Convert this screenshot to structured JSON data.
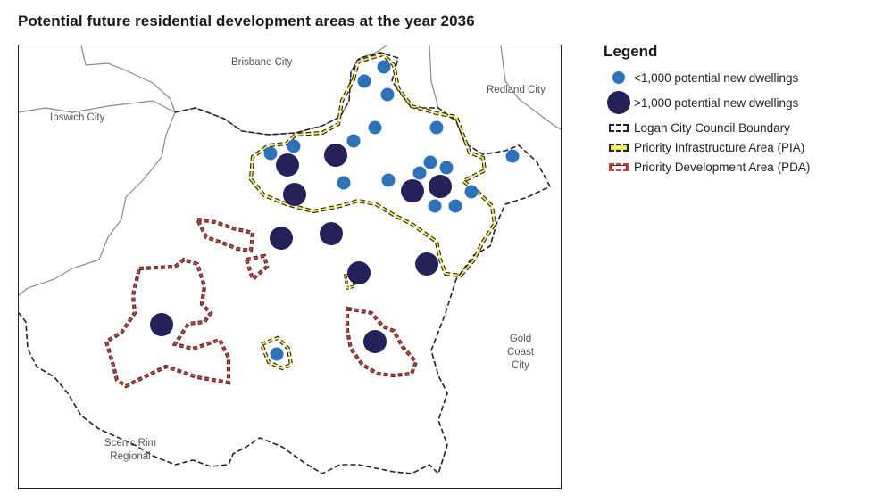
{
  "title": "Potential future residential development areas at the year 2036",
  "legend": {
    "title": "Legend",
    "items": [
      {
        "label": "<1,000 potential new dwellings",
        "symbol": "small-blue-dot",
        "color": "#2e72ba"
      },
      {
        "label": ">1,000 potential new dwellings",
        "symbol": "large-navy-dot",
        "color": "#25225a"
      },
      {
        "label": "Logan City Council Boundary",
        "symbol": "black-dashed-line",
        "color": "#222222"
      },
      {
        "label": "Priority Infrastructure Area (PIA)",
        "symbol": "yellow-dashed-line",
        "color": "#f2e63a"
      },
      {
        "label": "Priority Development Area (PDA)",
        "symbol": "red-dashed-line",
        "color": "#d43b3b"
      }
    ]
  },
  "places": {
    "brisbane": "Brisbane City",
    "redland": "Redland City",
    "ipswich": "Ipswich City",
    "gold_coast": [
      "Gold",
      "Coast",
      "City"
    ],
    "scenic_rim": [
      "Scenic Rim",
      "Regional"
    ]
  }
}
